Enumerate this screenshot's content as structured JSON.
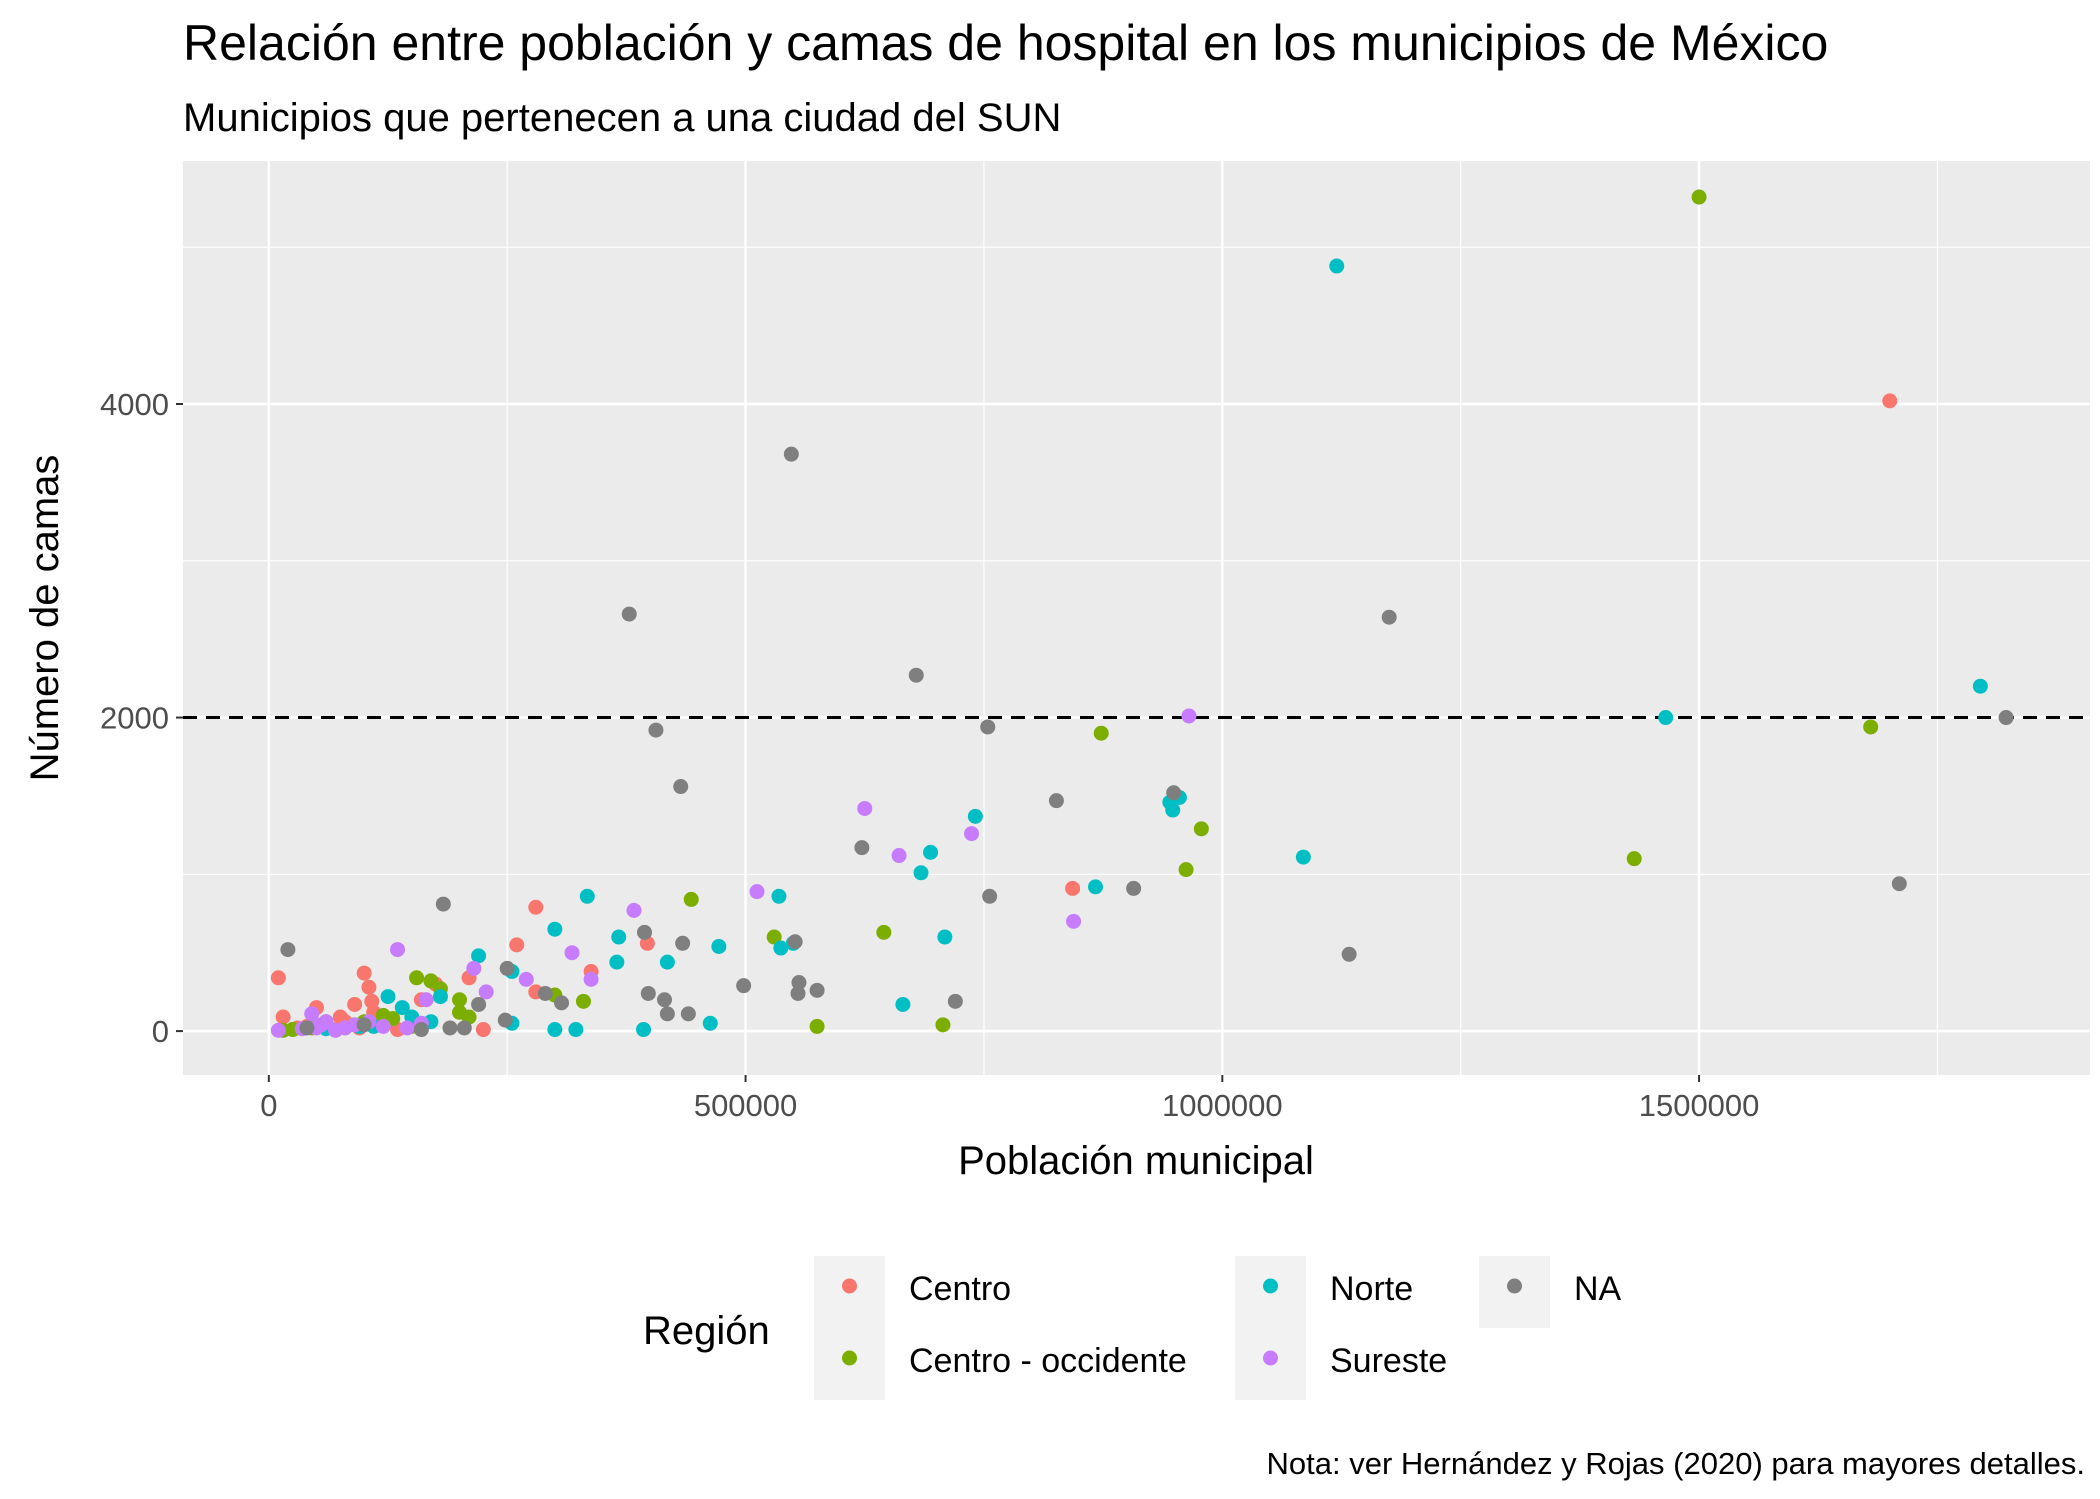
{
  "chart_data": {
    "type": "scatter",
    "title": "Relación entre población y camas de hospital en los municipios de México",
    "subtitle": "Municipios que pertenecen a una ciudad del SUN",
    "xlabel": "Población municipal",
    "ylabel": "Número de camas",
    "caption": "Nota: ver Hernández y Rojas (2020) para mayores detalles.",
    "xlim": [
      -90000,
      1910000
    ],
    "ylim": [
      -280,
      5550
    ],
    "x_ticks": [
      0,
      500000,
      1000000,
      1500000
    ],
    "x_tick_labels": [
      "0",
      "500000",
      "1000000",
      "1500000"
    ],
    "y_ticks": [
      0,
      2000,
      4000
    ],
    "y_tick_labels": [
      "0",
      "2000",
      "4000"
    ],
    "grid": true,
    "reference_line": {
      "y": 2000,
      "style": "dashed"
    },
    "legend": {
      "title": "Región",
      "position": "bottom",
      "entries": [
        "Centro",
        "Centro - occidente",
        "Norte",
        "Sureste",
        "NA"
      ]
    },
    "colors": {
      "Centro": "#F8766D",
      "Centro - occidente": "#7CAE00",
      "Norte": "#00BFC4",
      "Sureste": "#C77CFF",
      "NA": "#7F7F7F"
    },
    "series": [
      {
        "name": "Centro",
        "points": [
          [
            1700000,
            4020
          ],
          [
            843000,
            910
          ],
          [
            397000,
            560
          ],
          [
            280000,
            790
          ],
          [
            260000,
            550
          ],
          [
            338000,
            380
          ],
          [
            210000,
            340
          ],
          [
            100000,
            370
          ],
          [
            105000,
            280
          ],
          [
            10000,
            340
          ],
          [
            50000,
            150
          ],
          [
            15000,
            90
          ],
          [
            75000,
            90
          ],
          [
            90000,
            170
          ],
          [
            108000,
            190
          ],
          [
            120000,
            60
          ],
          [
            135000,
            10
          ],
          [
            160000,
            200
          ],
          [
            175000,
            300
          ],
          [
            280000,
            250
          ],
          [
            225000,
            10
          ],
          [
            60000,
            40
          ],
          [
            40000,
            30
          ],
          [
            80000,
            60
          ],
          [
            95000,
            20
          ],
          [
            110000,
            120
          ],
          [
            30000,
            20
          ],
          [
            70000,
            10
          ]
        ]
      },
      {
        "name": "Centro - occidente",
        "points": [
          [
            1500000,
            5320
          ],
          [
            1680000,
            1940
          ],
          [
            1432000,
            1100
          ],
          [
            873000,
            1900
          ],
          [
            978000,
            1290
          ],
          [
            962000,
            1030
          ],
          [
            645000,
            630
          ],
          [
            443000,
            840
          ],
          [
            530000,
            600
          ],
          [
            575000,
            30
          ],
          [
            707000,
            40
          ],
          [
            330000,
            190
          ],
          [
            300000,
            230
          ],
          [
            155000,
            340
          ],
          [
            170000,
            320
          ],
          [
            180000,
            270
          ],
          [
            200000,
            200
          ],
          [
            210000,
            90
          ],
          [
            200000,
            120
          ],
          [
            130000,
            80
          ],
          [
            60000,
            60
          ],
          [
            90000,
            40
          ],
          [
            25000,
            10
          ],
          [
            15000,
            5
          ],
          [
            45000,
            20
          ],
          [
            100000,
            60
          ],
          [
            150000,
            30
          ],
          [
            120000,
            100
          ]
        ]
      },
      {
        "name": "Norte",
        "points": [
          [
            1120000,
            4880
          ],
          [
            1795000,
            2200
          ],
          [
            1465000,
            2000
          ],
          [
            1085000,
            1110
          ],
          [
            955000,
            1490
          ],
          [
            945000,
            1460
          ],
          [
            948000,
            1410
          ],
          [
            867000,
            920
          ],
          [
            741000,
            1370
          ],
          [
            694000,
            1140
          ],
          [
            684000,
            1010
          ],
          [
            709000,
            600
          ],
          [
            665000,
            170
          ],
          [
            535000,
            860
          ],
          [
            537000,
            530
          ],
          [
            550000,
            560
          ],
          [
            472000,
            540
          ],
          [
            463000,
            50
          ],
          [
            418000,
            440
          ],
          [
            393000,
            10
          ],
          [
            367000,
            600
          ],
          [
            365000,
            440
          ],
          [
            334000,
            860
          ],
          [
            300000,
            650
          ],
          [
            300000,
            10
          ],
          [
            322000,
            10
          ],
          [
            255000,
            380
          ],
          [
            220000,
            480
          ],
          [
            255000,
            50
          ],
          [
            180000,
            220
          ],
          [
            140000,
            150
          ],
          [
            150000,
            90
          ],
          [
            110000,
            30
          ],
          [
            170000,
            60
          ],
          [
            125000,
            220
          ],
          [
            95000,
            30
          ],
          [
            60000,
            15
          ]
        ]
      },
      {
        "name": "Sureste",
        "points": [
          [
            965000,
            2010
          ],
          [
            844000,
            700
          ],
          [
            737000,
            1260
          ],
          [
            625000,
            1420
          ],
          [
            661000,
            1120
          ],
          [
            512000,
            890
          ],
          [
            383000,
            770
          ],
          [
            318000,
            500
          ],
          [
            338000,
            330
          ],
          [
            270000,
            330
          ],
          [
            228000,
            250
          ],
          [
            215000,
            400
          ],
          [
            135000,
            520
          ],
          [
            165000,
            200
          ],
          [
            160000,
            50
          ],
          [
            145000,
            20
          ],
          [
            105000,
            60
          ],
          [
            80000,
            20
          ],
          [
            60000,
            60
          ],
          [
            45000,
            110
          ],
          [
            50000,
            20
          ],
          [
            35000,
            15
          ],
          [
            10000,
            5
          ],
          [
            90000,
            40
          ],
          [
            120000,
            30
          ],
          [
            70000,
            5
          ],
          [
            55000,
            40
          ]
        ]
      },
      {
        "name": "NA",
        "points": [
          [
            548000,
            3680
          ],
          [
            378000,
            2660
          ],
          [
            1175000,
            2640
          ],
          [
            679000,
            2270
          ],
          [
            406000,
            1920
          ],
          [
            754000,
            1940
          ],
          [
            1822000,
            2000
          ],
          [
            432000,
            1560
          ],
          [
            826000,
            1470
          ],
          [
            949000,
            1520
          ],
          [
            622000,
            1170
          ],
          [
            907000,
            910
          ],
          [
            1710000,
            940
          ],
          [
            756000,
            860
          ],
          [
            183000,
            810
          ],
          [
            1133000,
            490
          ],
          [
            394000,
            630
          ],
          [
            434000,
            560
          ],
          [
            552000,
            570
          ],
          [
            556000,
            310
          ],
          [
            555000,
            240
          ],
          [
            575000,
            260
          ],
          [
            498000,
            290
          ],
          [
            398000,
            240
          ],
          [
            415000,
            200
          ],
          [
            418000,
            110
          ],
          [
            440000,
            110
          ],
          [
            720000,
            190
          ],
          [
            307000,
            180
          ],
          [
            290000,
            240
          ],
          [
            250000,
            400
          ],
          [
            220000,
            170
          ],
          [
            205000,
            20
          ],
          [
            190000,
            20
          ],
          [
            248000,
            70
          ],
          [
            20000,
            520
          ],
          [
            100000,
            40
          ],
          [
            160000,
            10
          ],
          [
            40000,
            20
          ]
        ]
      }
    ]
  }
}
